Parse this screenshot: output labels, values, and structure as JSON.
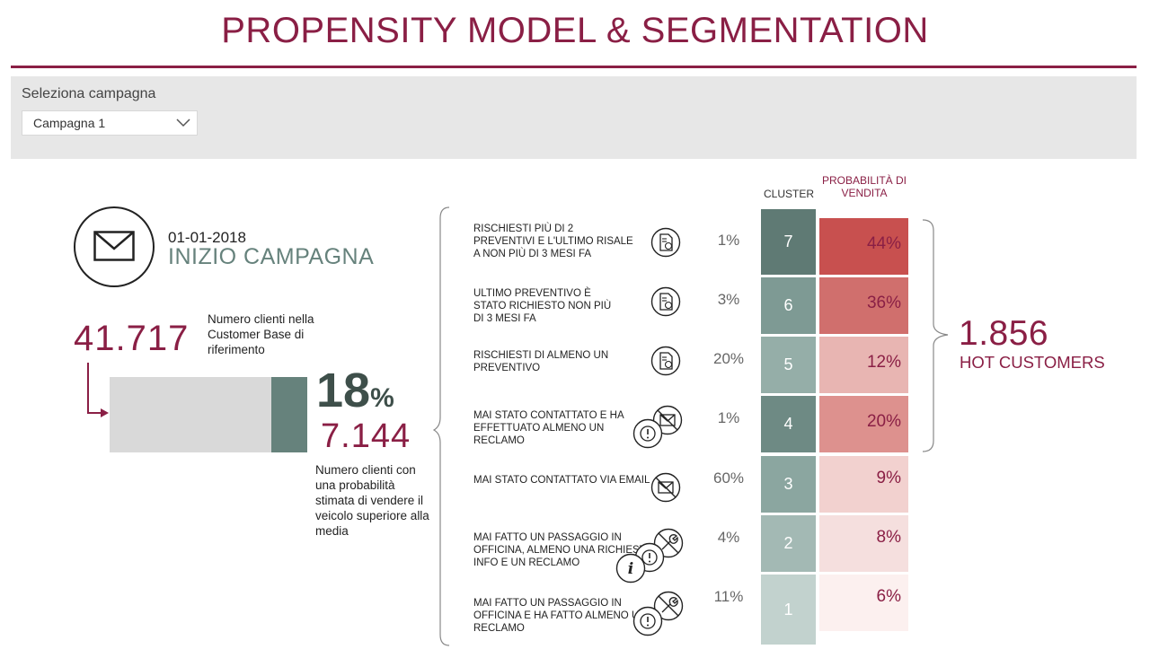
{
  "header": {
    "title": "PROPENSITY MODEL & SEGMENTATION"
  },
  "filter": {
    "label": "Seleziona campagna",
    "selected": "Campagna 1"
  },
  "campaign": {
    "date": "01-01-2018",
    "label": "INIZIO CAMPAGNA"
  },
  "base": {
    "count": "41.717",
    "caption": "Numero clienti nella Customer Base di riferimento"
  },
  "target": {
    "percent_value": "18",
    "percent_sign": "%",
    "percent_fraction": 0.18,
    "count": "7.144",
    "caption": "Numero clienti con una probabilità stimata di vendere il veicolo superiore alla media"
  },
  "table_headers": {
    "cluster": "CLUSTER",
    "probability": "PROBABILITÀ DI VENDITA"
  },
  "segments": [
    {
      "description": "RISCHIESTI PIÙ DI 2 PREVENTIVI E L'ULTIMO RISALE A NON PIÙ DI 3 MESI FA",
      "icon": "quote-document-icon",
      "share": "1%",
      "cluster": "7",
      "probability": "44%",
      "cluster_color": "#5f7a74",
      "prob_color": "#c8504f"
    },
    {
      "description": "ULTIMO PREVENTIVO È STATO RICHIESTO NON PIÙ DI 3 MESI FA",
      "icon": "quote-document-icon",
      "share": "3%",
      "cluster": "6",
      "probability": "36%",
      "cluster_color": "#7e9a94",
      "prob_color": "#d06f6d"
    },
    {
      "description": "RISCHIESTI DI ALMENO UN PREVENTIVO",
      "icon": "quote-document-icon",
      "share": "20%",
      "cluster": "5",
      "probability": "12%",
      "cluster_color": "#95aea8",
      "prob_color": "#e8b5b2"
    },
    {
      "description": "MAI STATO CONTATTATO E HA EFFETTUATO ALMENO UN RECLAMO",
      "icon": "no-email-complaint-icon",
      "share": "1%",
      "cluster": "4",
      "probability": "20%",
      "cluster_color": "#6e8a84",
      "prob_color": "#dd918e"
    },
    {
      "description": "MAI STATO CONTATTATO VIA EMAIL",
      "icon": "no-email-icon",
      "share": "60%",
      "cluster": "3",
      "probability": "9%",
      "cluster_color": "#8ba6a0",
      "prob_color": "#f2d1cf"
    },
    {
      "description": "MAI FATTO UN PASSAGGIO IN OFFICINA, ALMENO UNA RICHIESTA INFO E UN RECLAMO",
      "icon": "no-workshop-info-complaint-icon",
      "share": "4%",
      "cluster": "2",
      "probability": "8%",
      "cluster_color": "#a3b9b4",
      "prob_color": "#f5dfde"
    },
    {
      "description": "MAI FATTO UN PASSAGGIO IN OFFICINA E HA FATTO ALMENO UN RECLAMO",
      "icon": "no-workshop-complaint-icon",
      "share": "11%",
      "cluster": "1",
      "probability": "6%",
      "cluster_color": "#c2d2ce",
      "prob_color": "#fcf0ef"
    }
  ],
  "hot": {
    "count": "1.856",
    "label": "HOT CUSTOMERS"
  },
  "colors": {
    "brand": "#8a1f45",
    "accent_green": "#66827c",
    "filter_bg": "#e7e7e7"
  }
}
